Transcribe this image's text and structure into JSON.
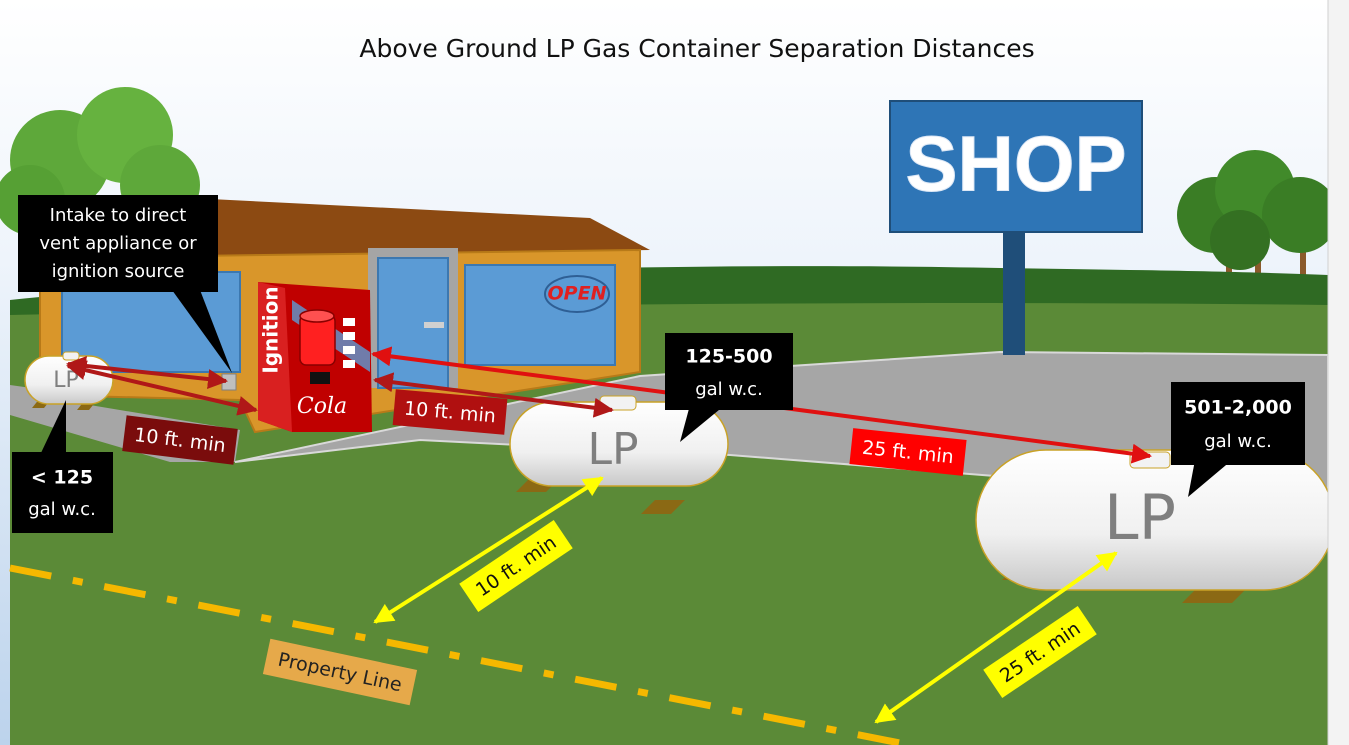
{
  "title": "Above Ground LP Gas Container Separation Distances",
  "sign": "SHOP",
  "open_sign": "OPEN",
  "vending_machine": {
    "label": "Ignition",
    "brand": "Cola"
  },
  "callouts": [
    {
      "lines": [
        "Intake to direct",
        "vent appliance or",
        "ignition source"
      ]
    },
    {
      "lines": [
        "< 125",
        "gal w.c."
      ]
    },
    {
      "lines": [
        "125-500",
        "gal w.c."
      ]
    },
    {
      "lines": [
        "501-2,000",
        "gal w.c."
      ]
    }
  ],
  "tanks": [
    "LP",
    "LP",
    "LP"
  ],
  "distances": [
    "10 ft. min",
    "10 ft. min",
    "25 ft. min",
    "10 ft. min",
    "25 ft. min"
  ],
  "property_line": "Property Line"
}
